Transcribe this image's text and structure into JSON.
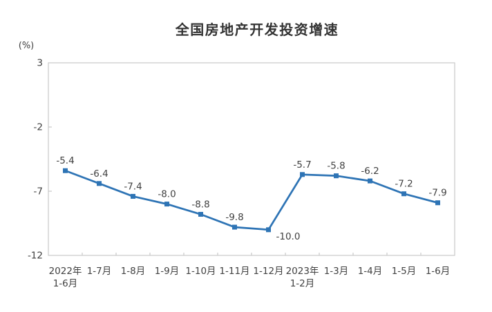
{
  "chart_data": {
    "type": "line",
    "title": "全国房地产开发投资增速",
    "unit_label": "(%)",
    "categories": [
      "2022年\n1-6月",
      "1-7月",
      "1-8月",
      "1-9月",
      "1-10月",
      "1-11月",
      "1-12月",
      "2023年\n1-2月",
      "1-3月",
      "1-4月",
      "1-5月",
      "1-6月"
    ],
    "values": [
      -5.4,
      -6.4,
      -7.4,
      -8.0,
      -8.8,
      -9.8,
      -10.0,
      -5.7,
      -5.8,
      -6.2,
      -7.2,
      -7.9
    ],
    "data_labels": [
      "-5.4",
      "-6.4",
      "-7.4",
      "-8.0",
      "-8.8",
      "-9.8",
      "-10.0",
      "-5.7",
      "-5.8",
      "-6.2",
      "-7.2",
      "-7.9"
    ],
    "label_positions": [
      "above",
      "above",
      "above",
      "above",
      "above",
      "above",
      "below-right",
      "above",
      "above",
      "above",
      "above",
      "above"
    ],
    "ylim": [
      -12,
      3
    ],
    "yticks": [
      3,
      -2,
      -7,
      -12
    ],
    "grid": "off",
    "legend": "none",
    "marker": "square",
    "colors": {
      "line": "#2E74B5",
      "marker": "#2E74B5",
      "text": "#404040",
      "axis": "#C9C9C9",
      "title": "#333333"
    }
  }
}
